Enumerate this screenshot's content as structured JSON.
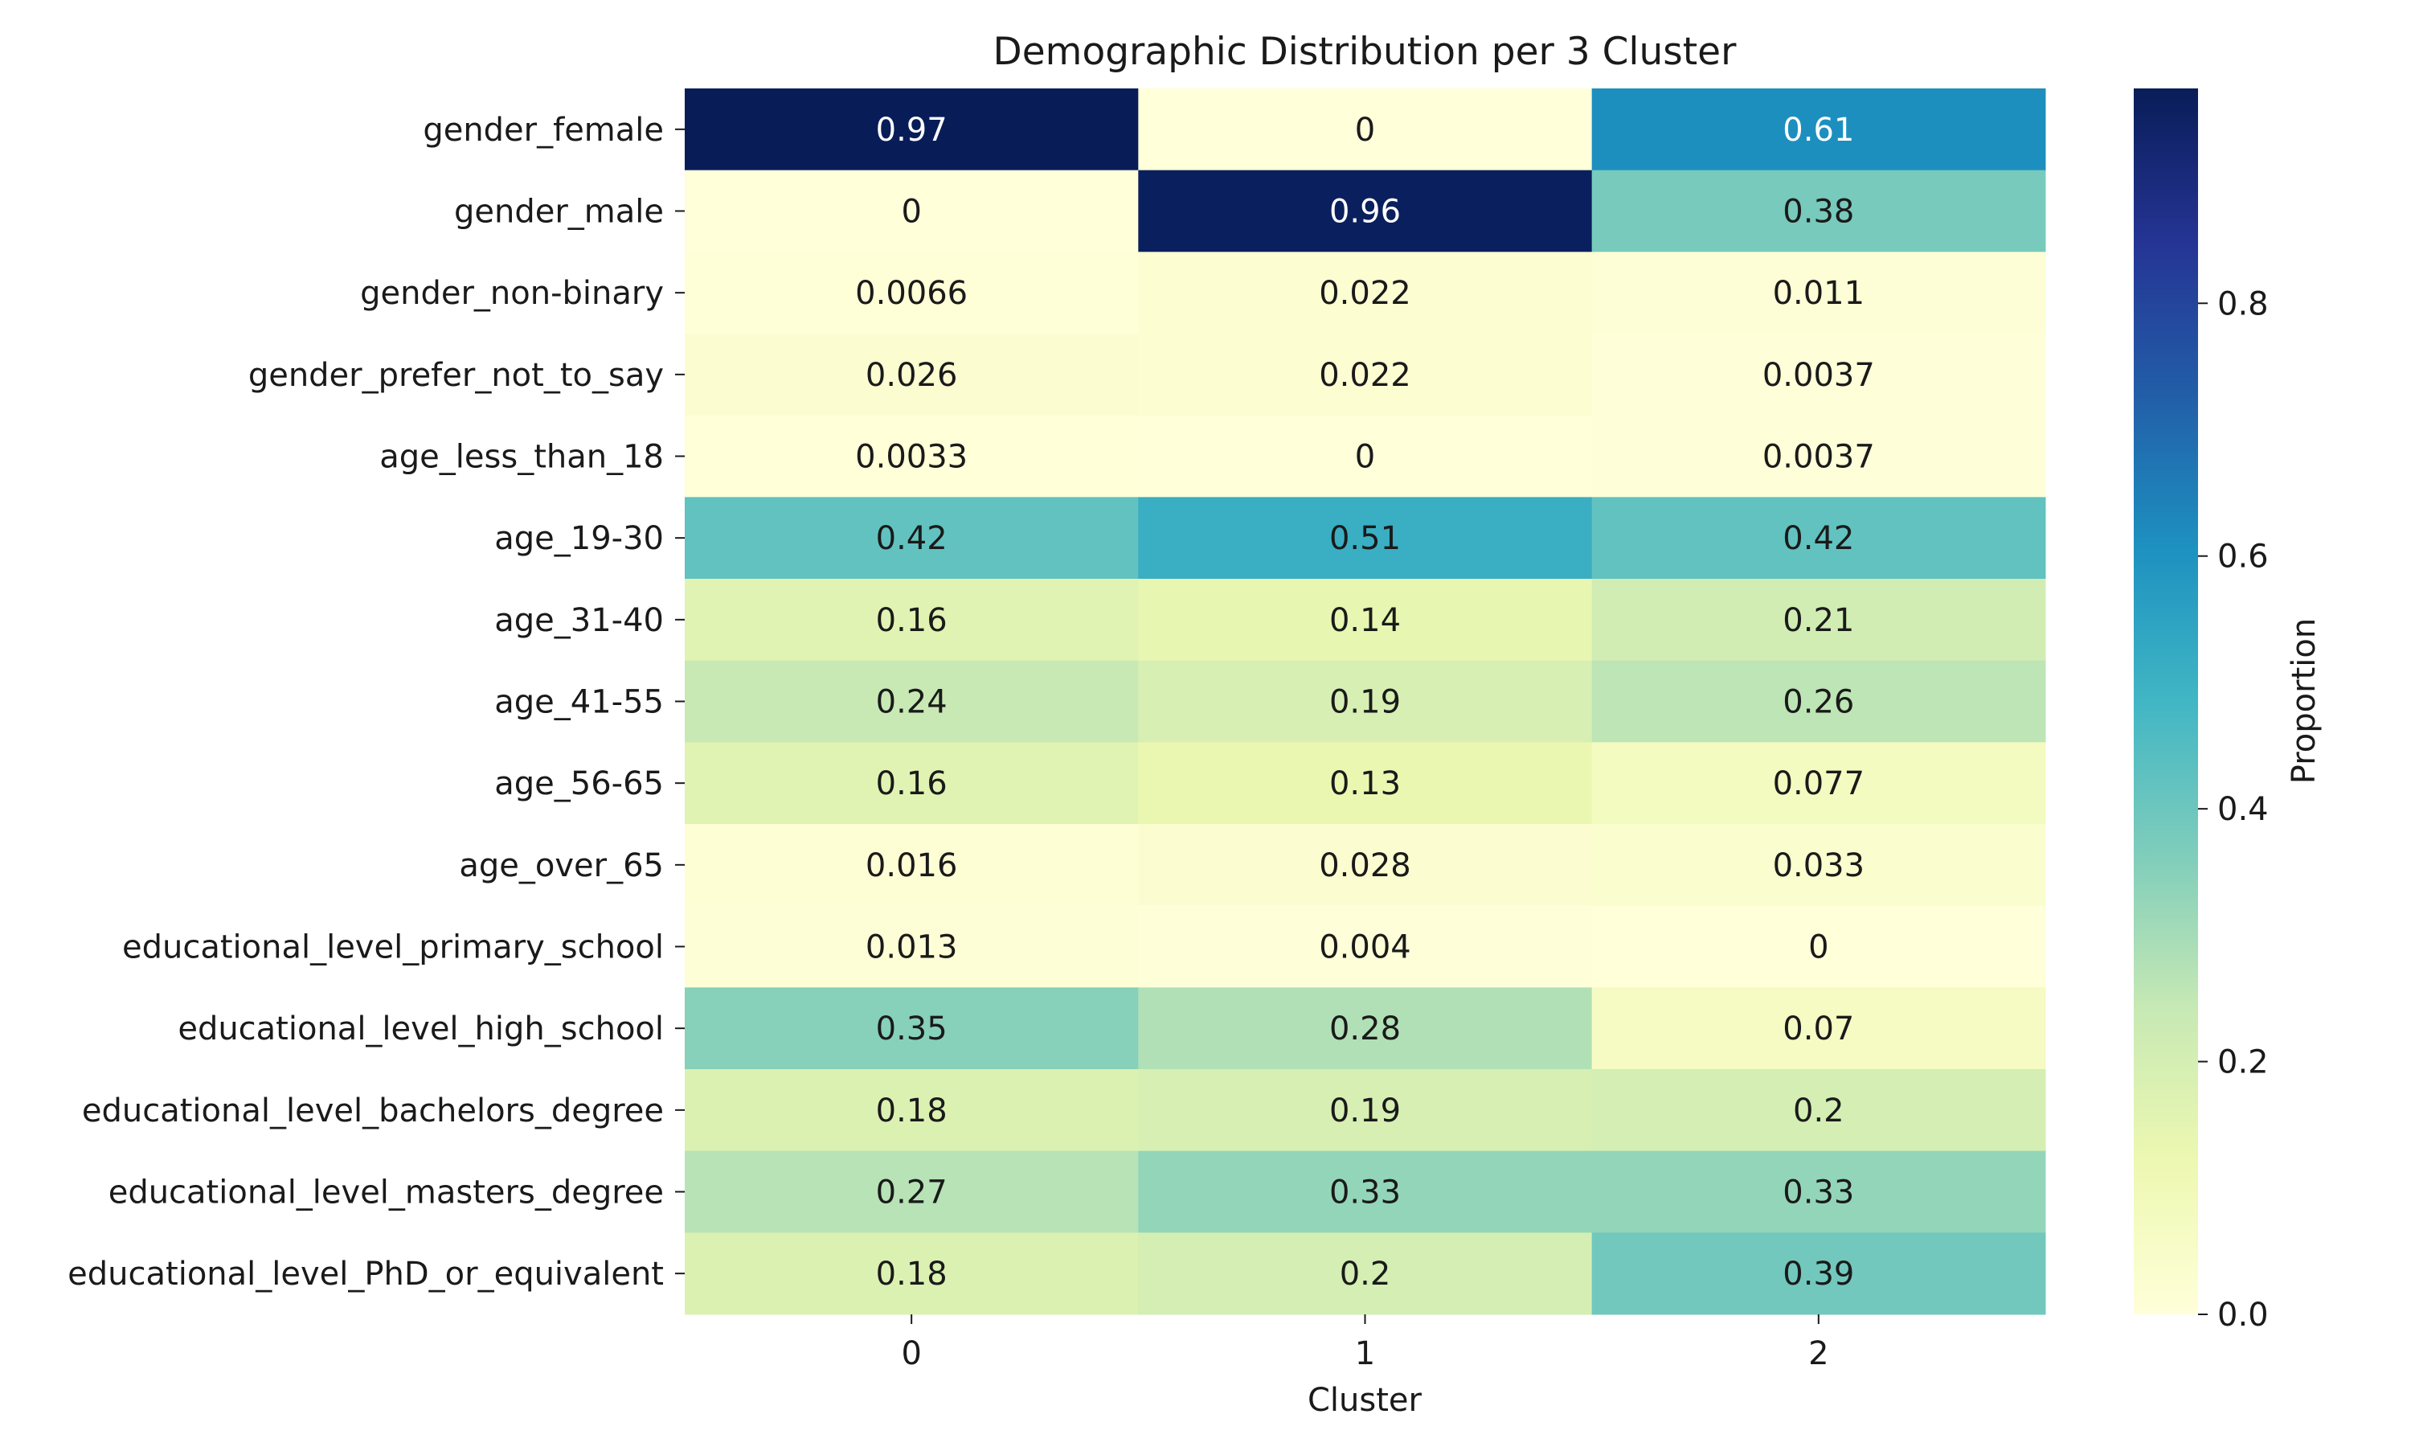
{
  "chart_data": {
    "type": "heatmap",
    "title": "Demographic Distribution per 3 Cluster",
    "xlabel": "Cluster",
    "ylabel": "",
    "colorbar_label": "Proportion",
    "colormap": "YlGnBu",
    "color_range": [
      0,
      0.97
    ],
    "colorbar_ticks": [
      "0.0",
      "0.2",
      "0.4",
      "0.6",
      "0.8"
    ],
    "columns": [
      "0",
      "1",
      "2"
    ],
    "rows": [
      "gender_female",
      "gender_male",
      "gender_non-binary",
      "gender_prefer_not_to_say",
      "age_less_than_18",
      "age_19-30",
      "age_31-40",
      "age_41-55",
      "age_56-65",
      "age_over_65",
      "educational_level_primary_school",
      "educational_level_high_school",
      "educational_level_bachelors_degree",
      "educational_level_masters_degree",
      "educational_level_PhD_or_equivalent"
    ],
    "values": [
      [
        0.97,
        0,
        0.61
      ],
      [
        0,
        0.96,
        0.38
      ],
      [
        0.0066,
        0.022,
        0.011
      ],
      [
        0.026,
        0.022,
        0.0037
      ],
      [
        0.0033,
        0,
        0.0037
      ],
      [
        0.42,
        0.51,
        0.42
      ],
      [
        0.16,
        0.14,
        0.21
      ],
      [
        0.24,
        0.19,
        0.26
      ],
      [
        0.16,
        0.13,
        0.077
      ],
      [
        0.016,
        0.028,
        0.033
      ],
      [
        0.013,
        0.004,
        0
      ],
      [
        0.35,
        0.28,
        0.07
      ],
      [
        0.18,
        0.19,
        0.2
      ],
      [
        0.27,
        0.33,
        0.33
      ],
      [
        0.18,
        0.2,
        0.39
      ]
    ],
    "value_labels": [
      [
        "0.97",
        "0",
        "0.61"
      ],
      [
        "0",
        "0.96",
        "0.38"
      ],
      [
        "0.0066",
        "0.022",
        "0.011"
      ],
      [
        "0.026",
        "0.022",
        "0.0037"
      ],
      [
        "0.0033",
        "0",
        "0.0037"
      ],
      [
        "0.42",
        "0.51",
        "0.42"
      ],
      [
        "0.16",
        "0.14",
        "0.21"
      ],
      [
        "0.24",
        "0.19",
        "0.26"
      ],
      [
        "0.16",
        "0.13",
        "0.077"
      ],
      [
        "0.016",
        "0.028",
        "0.033"
      ],
      [
        "0.013",
        "0.004",
        "0"
      ],
      [
        "0.35",
        "0.28",
        "0.07"
      ],
      [
        "0.18",
        "0.19",
        "0.2"
      ],
      [
        "0.27",
        "0.33",
        "0.33"
      ],
      [
        "0.18",
        "0.2",
        "0.39"
      ]
    ]
  }
}
